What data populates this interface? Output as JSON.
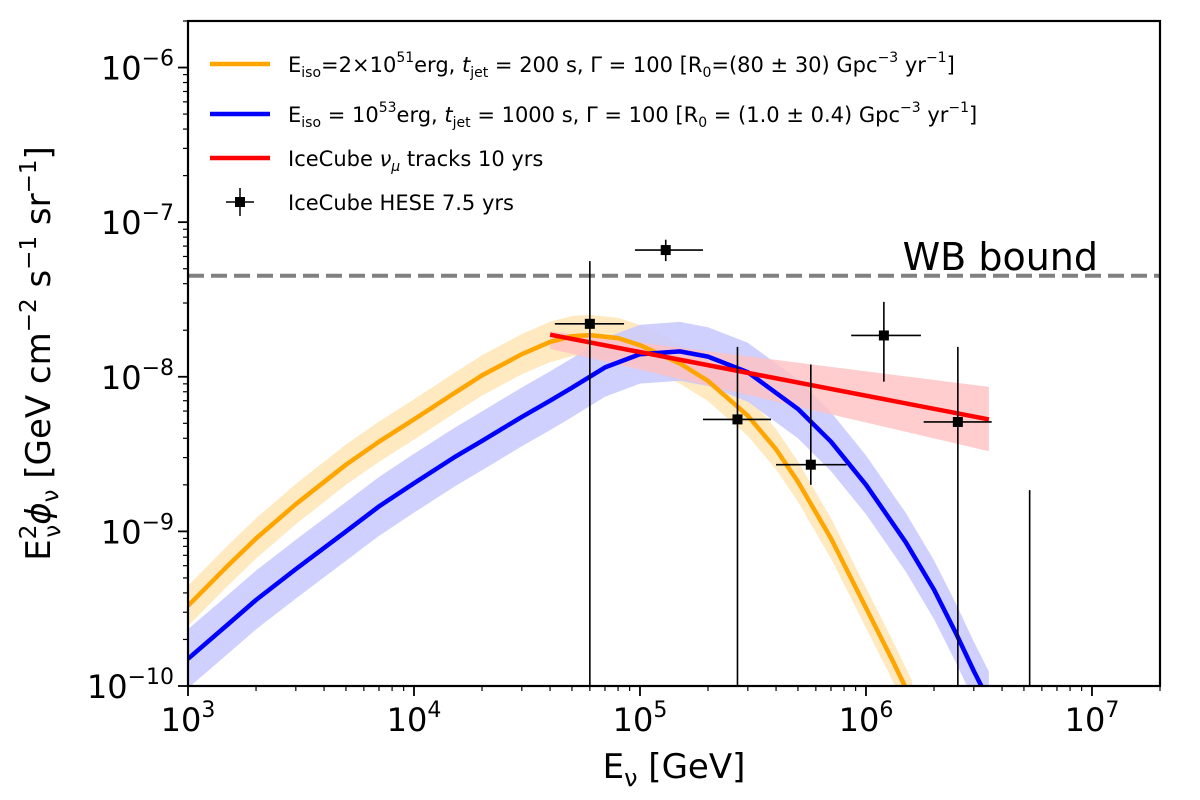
{
  "chart_data": {
    "type": "line",
    "xscale": "log",
    "yscale": "log",
    "xlim": [
      1000,
      20000000
    ],
    "ylim": [
      1e-10,
      2e-06
    ],
    "xlabel": "E",
    "xlabel_sub": "ν",
    "xlabel_unit": " [GeV]",
    "ylabel_main": "E",
    "ylabel_sup": "2",
    "ylabel_sub": "ν",
    "ylabel_phi": "ϕ",
    "ylabel_phi_sub": "ν",
    "ylabel_unit": " [GeV cm",
    "ylabel_unit_exp1": "−2",
    "ylabel_unit_mid": " s",
    "ylabel_unit_exp2": "−1",
    "ylabel_unit_mid2": " sr",
    "ylabel_unit_exp3": "−1",
    "ylabel_unit_end": "]",
    "x_ticks": [
      {
        "value": 1000,
        "base": "10",
        "exp": "3"
      },
      {
        "value": 10000,
        "base": "10",
        "exp": "4"
      },
      {
        "value": 100000,
        "base": "10",
        "exp": "5"
      },
      {
        "value": 1000000,
        "base": "10",
        "exp": "6"
      },
      {
        "value": 10000000,
        "base": "10",
        "exp": "7"
      }
    ],
    "y_ticks": [
      {
        "value": 1e-10,
        "base": "10",
        "exp": "−10"
      },
      {
        "value": 1e-09,
        "base": "10",
        "exp": "−9"
      },
      {
        "value": 1e-08,
        "base": "10",
        "exp": "−8"
      },
      {
        "value": 1e-07,
        "base": "10",
        "exp": "−7"
      },
      {
        "value": 1e-06,
        "base": "10",
        "exp": "−6"
      }
    ],
    "wb_bound": {
      "value": 4.5e-08,
      "label": "WB bound",
      "color": "#808080"
    },
    "series": [
      {
        "name": "orange",
        "color": "#FFA500",
        "band_color": "#FFE4B0",
        "x": [
          1000,
          1500,
          2000,
          3000,
          5000,
          7000,
          10000,
          15000,
          20000,
          30000,
          40000,
          50000,
          60000,
          80000,
          100000,
          150000,
          200000,
          300000,
          400000,
          500000,
          700000,
          1000000,
          1300000,
          1600000
        ],
        "y": [
          3.3e-10,
          6e-10,
          9e-10,
          1.5e-09,
          2.7e-09,
          3.8e-09,
          5.3e-09,
          7.8e-09,
          1.02e-08,
          1.4e-08,
          1.68e-08,
          1.83e-08,
          1.86e-08,
          1.78e-08,
          1.6e-08,
          1.22e-08,
          9.4e-09,
          5.6e-09,
          3.4e-09,
          2.1e-09,
          9e-10,
          3.2e-10,
          1.5e-10,
          8e-11
        ],
        "band_factor": 1.35
      },
      {
        "name": "blue",
        "color": "#0000FF",
        "band_color": "#C8C8FF",
        "x": [
          1000,
          1500,
          2000,
          3000,
          5000,
          7000,
          10000,
          15000,
          20000,
          30000,
          40000,
          50000,
          70000,
          100000,
          150000,
          200000,
          300000,
          500000,
          700000,
          1000000,
          1500000,
          2000000,
          2500000,
          3000000,
          3500000
        ],
        "y": [
          1.5e-10,
          2.5e-10,
          3.6e-10,
          5.7e-10,
          1e-09,
          1.45e-09,
          2.05e-09,
          3e-09,
          3.85e-09,
          5.5e-09,
          7e-09,
          8.5e-09,
          1.15e-08,
          1.4e-08,
          1.46e-08,
          1.35e-08,
          1.07e-08,
          6.2e-09,
          3.8e-09,
          2e-09,
          8.5e-10,
          4.2e-10,
          2.2e-10,
          1.25e-10,
          8e-11
        ],
        "band_factor": 1.55
      },
      {
        "name": "red",
        "color": "#FF0000",
        "band_color": "#FFC0C0",
        "x": [
          40000,
          3500000
        ],
        "y": [
          1.87e-08,
          5.3e-09
        ],
        "band_upper": [
          1.97e-08,
          8.6e-09
        ],
        "band_lower": [
          1.52e-08,
          3.3e-09
        ]
      }
    ],
    "hese_points": [
      {
        "x": 60000,
        "y": 2.2e-08,
        "xlo": 42000,
        "xhi": 85000,
        "ylo": 1e-10,
        "yhi": 5.6e-08
      },
      {
        "x": 130000,
        "y": 6.6e-08,
        "xlo": 95000,
        "xhi": 190000,
        "ylo": 5.6e-08,
        "yhi": 7.7e-08
      },
      {
        "x": 270000,
        "y": 5.3e-09,
        "xlo": 190000,
        "xhi": 380000,
        "ylo": 1e-10,
        "yhi": 1.56e-08
      },
      {
        "x": 570000,
        "y": 2.7e-09,
        "xlo": 400000,
        "xhi": 820000,
        "ylo": 2e-09,
        "yhi": 1.2e-08
      },
      {
        "x": 1200000,
        "y": 1.85e-08,
        "xlo": 860000,
        "xhi": 1750000,
        "ylo": 9.3e-09,
        "yhi": 3.05e-08
      },
      {
        "x": 2550000,
        "y": 5.1e-09,
        "xlo": 1800000,
        "xhi": 3600000,
        "ylo": 1e-10,
        "yhi": 1.56e-08
      },
      {
        "x": 5300000,
        "y": null,
        "xlo": null,
        "xhi": null,
        "ylo": 1e-10,
        "yhi": 1.85e-09
      }
    ],
    "legend": {
      "position": "upper-left",
      "entries": [
        {
          "id": "orange",
          "color": "#FFA500",
          "kind": "line",
          "p1": "E",
          "p1sub": "iso",
          "p2": "=2×10",
          "p2sup": "51",
          "p3": "erg, ",
          "p4i": "t",
          "p4sub": "jet",
          "p5": " = 200 s, Γ = 100 [R",
          "p5sub": "0",
          "p6": "=(80 ± 30) Gpc",
          "p6sup": "−3",
          "p7": " yr",
          "p7sup": "−1",
          "p8": "]"
        },
        {
          "id": "blue",
          "color": "#0000FF",
          "kind": "line",
          "p1": "E",
          "p1sub": "iso",
          "p2": " = 10",
          "p2sup": "53",
          "p3": "erg, ",
          "p4i": "t",
          "p4sub": "jet",
          "p5": " = 1000 s, Γ = 100 [R",
          "p5sub": "0",
          "p6": " = (1.0 ± 0.4) Gpc",
          "p6sup": "−3",
          "p7": " yr",
          "p7sup": "−1",
          "p8": "]"
        },
        {
          "id": "red",
          "color": "#FF0000",
          "kind": "line",
          "r1": "IceCube ",
          "r2i": "ν",
          "r2sub": "μ",
          "r3": " tracks 10 yrs"
        },
        {
          "id": "hese",
          "color": "#000000",
          "kind": "errorbar",
          "label": "IceCube HESE 7.5 yrs"
        }
      ]
    }
  }
}
